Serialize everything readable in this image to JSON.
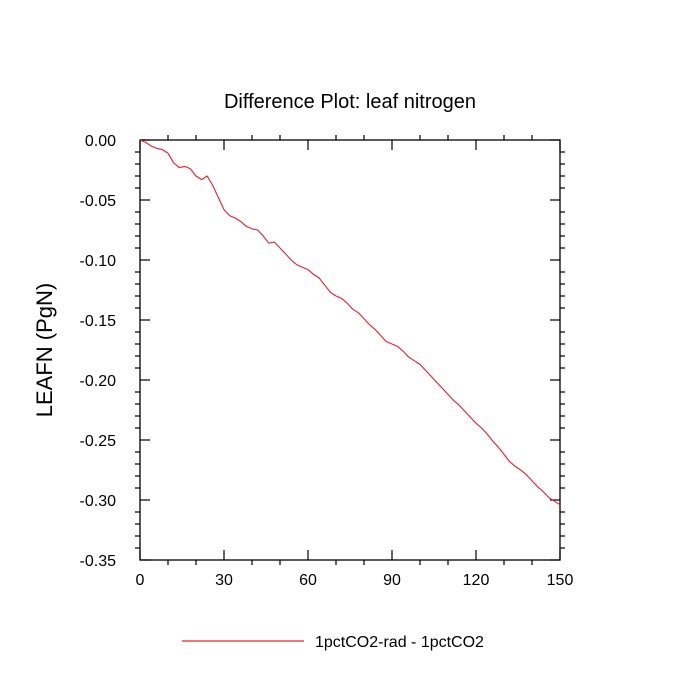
{
  "chart_data": {
    "type": "line",
    "title": "Difference Plot: leaf nitrogen",
    "xlabel": "",
    "ylabel": "LEAFN  (PgN)",
    "xlim": [
      0,
      150
    ],
    "ylim": [
      -0.35,
      0.0
    ],
    "x_ticks": [
      0,
      30,
      60,
      90,
      120,
      150
    ],
    "x_tick_labels": [
      "0",
      "30",
      "60",
      "90",
      "120",
      "150"
    ],
    "y_ticks": [
      0.0,
      -0.05,
      -0.1,
      -0.15,
      -0.2,
      -0.25,
      -0.3,
      -0.35
    ],
    "y_tick_labels": [
      "0.00",
      "-0.05",
      "-0.10",
      "-0.15",
      "-0.20",
      "-0.25",
      "-0.30",
      "-0.35"
    ],
    "grid": false,
    "legend_position": "bottom-center",
    "series": [
      {
        "name": "1pctCO2-rad - 1pctCO2",
        "color": "#e8202a",
        "x": [
          0,
          2,
          4,
          6,
          8,
          10,
          12,
          14,
          16,
          18,
          20,
          22,
          24,
          26,
          28,
          30,
          32,
          34,
          36,
          38,
          40,
          42,
          44,
          46,
          48,
          50,
          52,
          54,
          56,
          58,
          60,
          62,
          64,
          66,
          68,
          70,
          72,
          74,
          76,
          78,
          80,
          82,
          84,
          86,
          88,
          90,
          92,
          94,
          96,
          98,
          100,
          102,
          104,
          106,
          108,
          110,
          112,
          114,
          116,
          118,
          120,
          122,
          124,
          126,
          128,
          130,
          132,
          134,
          136,
          138,
          140,
          142,
          144,
          146,
          148,
          150
        ],
        "y": [
          0.0,
          -0.002,
          -0.005,
          -0.007,
          -0.008,
          -0.011,
          -0.019,
          -0.023,
          -0.022,
          -0.024,
          -0.03,
          -0.033,
          -0.03,
          -0.038,
          -0.048,
          -0.058,
          -0.063,
          -0.065,
          -0.068,
          -0.072,
          -0.074,
          -0.075,
          -0.08,
          -0.086,
          -0.085,
          -0.09,
          -0.095,
          -0.1,
          -0.104,
          -0.106,
          -0.108,
          -0.112,
          -0.115,
          -0.121,
          -0.127,
          -0.13,
          -0.132,
          -0.136,
          -0.141,
          -0.144,
          -0.149,
          -0.154,
          -0.158,
          -0.163,
          -0.168,
          -0.17,
          -0.172,
          -0.176,
          -0.181,
          -0.184,
          -0.187,
          -0.192,
          -0.197,
          -0.202,
          -0.207,
          -0.212,
          -0.217,
          -0.221,
          -0.226,
          -0.231,
          -0.236,
          -0.24,
          -0.245,
          -0.251,
          -0.256,
          -0.262,
          -0.268,
          -0.272,
          -0.275,
          -0.279,
          -0.284,
          -0.289,
          -0.293,
          -0.298,
          -0.301,
          -0.304
        ]
      }
    ]
  }
}
